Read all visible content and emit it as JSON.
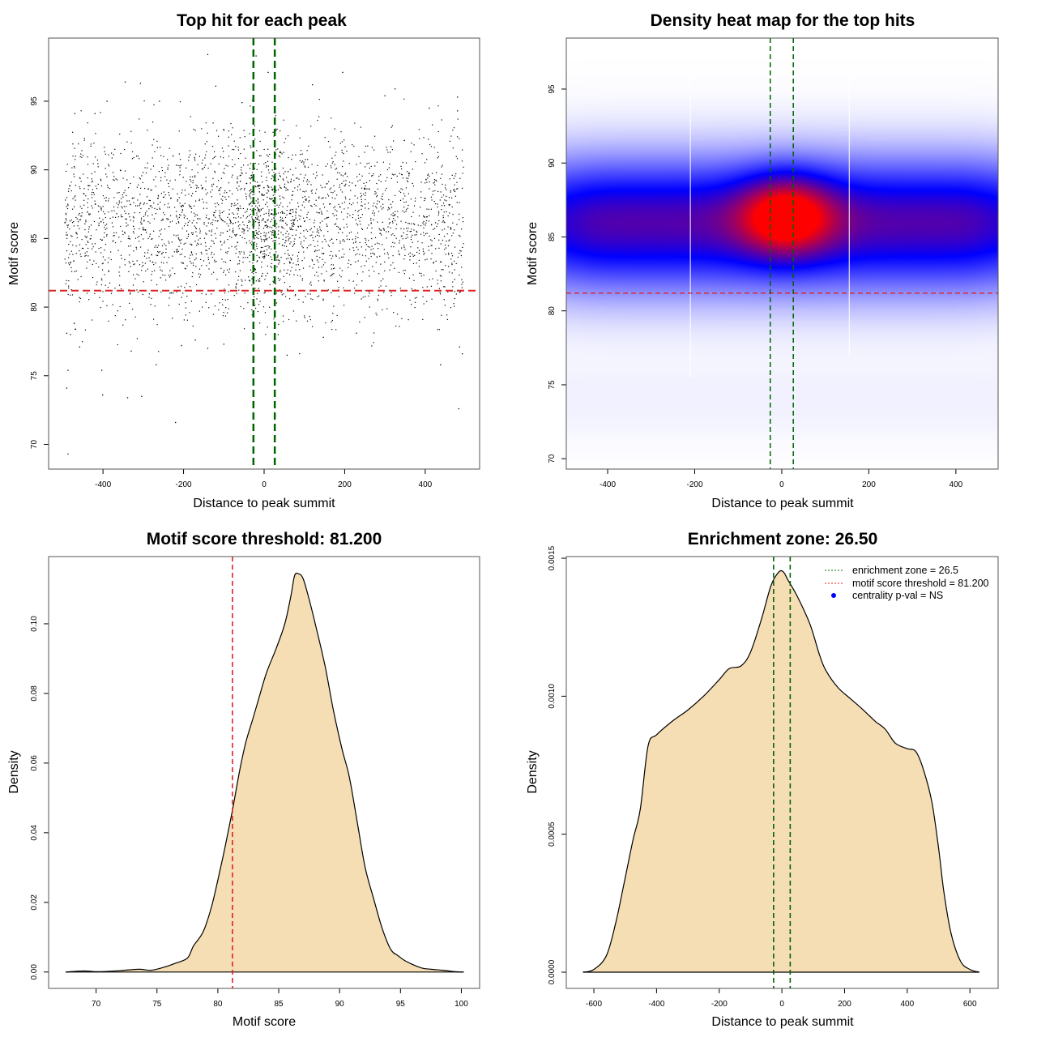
{
  "colors": {
    "points": "#000000",
    "enrichment_line": "#006400",
    "threshold_line": "#dd2222",
    "density_fill": "#f5deb3",
    "heat_low": "#ffffff",
    "heat_mid": "#0000ff",
    "heat_high": "#ff0000",
    "pval_point": "#0000ff"
  },
  "chart_data": [
    {
      "type": "scatter",
      "title": "Top hit for each peak",
      "xlabel": "Distance to peak summit",
      "ylabel": "Motif score",
      "xlim": [
        -535,
        535
      ],
      "ylim": [
        68.2,
        99.6
      ],
      "xticks": [
        "-400",
        "-200",
        "0",
        "200",
        "400"
      ],
      "xtick_values": [
        -400,
        -200,
        0,
        200,
        400
      ],
      "yticks": [
        "70",
        "75",
        "80",
        "85",
        "90",
        "95"
      ],
      "ytick_values": [
        70,
        75,
        80,
        85,
        90,
        95
      ],
      "grid": false,
      "x_data_range": [
        -495,
        495
      ],
      "y_center": 86,
      "outlier_points": [
        [
          -487,
          69.3
        ],
        [
          -220,
          71.6
        ],
        [
          483,
          72.6
        ],
        [
          -490,
          74.1
        ],
        [
          -401,
          73.6
        ],
        [
          -339,
          73.4
        ],
        [
          -304,
          73.5
        ],
        [
          -487,
          75.4
        ],
        [
          -403,
          75.4
        ],
        [
          438,
          75.8
        ],
        [
          -268,
          75.8
        ],
        [
          57,
          76.5
        ],
        [
          492,
          76.6
        ],
        [
          -330,
          76.8
        ],
        [
          485,
          77.1
        ],
        [
          -140,
          77.0
        ],
        [
          -100,
          77.3
        ],
        [
          -205,
          77.2
        ],
        [
          -458,
          77.1
        ],
        [
          -490,
          78.1
        ],
        [
          147,
          77.8
        ],
        [
          229,
          78.1
        ],
        [
          -171,
          77.6
        ],
        [
          -481,
          78.0
        ],
        [
          -140,
          98.4
        ],
        [
          -20,
          98.3
        ],
        [
          195,
          97.1
        ],
        [
          10,
          97.1
        ],
        [
          -345,
          96.4
        ],
        [
          -307,
          96.3
        ],
        [
          -120,
          96.1
        ],
        [
          120,
          96.2
        ],
        [
          480,
          95.3
        ],
        [
          300,
          95.4
        ],
        [
          325,
          95.9
        ],
        [
          -390,
          95.0
        ],
        [
          -260,
          95.0
        ],
        [
          410,
          94.5
        ],
        [
          -470,
          94.1
        ],
        [
          -420,
          94.1
        ],
        [
          -55,
          94.9
        ],
        [
          480,
          94.3
        ]
      ],
      "lines": {
        "vertical": [
          -26.5,
          26.5
        ],
        "horizontal": 81.2
      }
    },
    {
      "type": "heatmap",
      "title": "Density heat map for the top hits",
      "xlabel": "Distance to peak summit",
      "ylabel": "Motif score",
      "xlim": [
        -495,
        497
      ],
      "ylim": [
        69.3,
        98.45
      ],
      "xticks": [
        "-400",
        "-200",
        "0",
        "200",
        "400"
      ],
      "xtick_values": [
        -400,
        -200,
        0,
        200,
        400
      ],
      "yticks": [
        "70",
        "75",
        "80",
        "85",
        "90",
        "95"
      ],
      "ytick_values": [
        70,
        75,
        80,
        85,
        90,
        95
      ],
      "density_peak": [
        10,
        86.5
      ],
      "band_center_y": 86,
      "colorscale": [
        "white",
        "blue",
        "red"
      ],
      "lines": {
        "vertical": [
          -26.5,
          26.5
        ],
        "horizontal": 81.2
      }
    },
    {
      "type": "area",
      "title": "Motif score threshold: 81.200",
      "xlabel": "Motif score",
      "ylabel": "Density",
      "xlim": [
        66.1,
        101.5
      ],
      "ylim": [
        -0.0047,
        0.1193
      ],
      "xticks": [
        "70",
        "75",
        "80",
        "85",
        "90",
        "95",
        "100"
      ],
      "xtick_values": [
        70,
        75,
        80,
        85,
        90,
        95,
        100
      ],
      "yticks": [
        "0.00",
        "0.02",
        "0.04",
        "0.06",
        "0.08",
        "0.10"
      ],
      "ytick_values": [
        0,
        0.02,
        0.04,
        0.06,
        0.08,
        0.1
      ],
      "x": [
        67.5,
        69,
        70,
        71,
        72,
        73.5,
        74.5,
        75.5,
        76.5,
        77.5,
        78,
        78.8,
        79.5,
        80.1,
        80.6,
        81.2,
        81.8,
        82.3,
        82.9,
        83.4,
        84,
        84.8,
        85.5,
        86,
        86.3,
        86.6,
        87,
        87.5,
        88,
        88.8,
        89.5,
        90.2,
        90.8,
        91.5,
        92.1,
        92.8,
        93.5,
        94.2,
        94.8,
        95.5,
        96.7,
        97.5,
        98.5,
        99.5,
        100.2
      ],
      "y": [
        0,
        0.0003,
        0.0001,
        0.0002,
        0.0004,
        0.0008,
        0.0005,
        0.0013,
        0.0025,
        0.004,
        0.0075,
        0.0116,
        0.019,
        0.028,
        0.036,
        0.0465,
        0.058,
        0.066,
        0.073,
        0.079,
        0.086,
        0.093,
        0.1,
        0.108,
        0.1138,
        0.1144,
        0.113,
        0.107,
        0.1,
        0.088,
        0.075,
        0.064,
        0.056,
        0.042,
        0.03,
        0.021,
        0.0125,
        0.0065,
        0.0047,
        0.003,
        0.0012,
        0.0008,
        0.0005,
        0.0001,
        0
      ],
      "lines": {
        "vertical": 81.2
      }
    },
    {
      "type": "area",
      "title": "Enrichment zone: 26.50",
      "xlabel": "Distance to peak summit",
      "ylabel": "Density",
      "xlim": [
        -688,
        690
      ],
      "ylim": [
        -5.87e-05,
        0.001506
      ],
      "xticks": [
        "-600",
        "-400",
        "-200",
        "0",
        "200",
        "400",
        "600"
      ],
      "xtick_values": [
        -600,
        -400,
        -200,
        0,
        200,
        400,
        600
      ],
      "yticks": [
        "0.0000",
        "0.0005",
        "0.0010",
        "0.0015"
      ],
      "ytick_values": [
        0,
        0.0005,
        0.001,
        0.0015
      ],
      "x": [
        -635,
        -600,
        -560,
        -530,
        -504,
        -475,
        -452,
        -427,
        -400,
        -349,
        -300,
        -250,
        -200,
        -168,
        -130,
        -100,
        -65,
        -35,
        -10,
        5,
        20,
        50,
        90,
        120,
        142,
        180,
        220,
        260,
        297,
        330,
        362,
        400,
        427,
        450,
        478,
        500,
        517,
        540,
        570,
        600,
        630
      ],
      "y": [
        0,
        1e-05,
        6e-05,
        0.00018,
        0.00032,
        0.00048,
        0.00059,
        0.00082,
        0.00086,
        0.00091,
        0.00095,
        0.001,
        0.00106,
        0.0011,
        0.00111,
        0.00116,
        0.00128,
        0.0014,
        0.00145,
        0.00145,
        0.00142,
        0.00136,
        0.00126,
        0.00115,
        0.00109,
        0.00103,
        0.00099,
        0.00095,
        0.00091,
        0.00088,
        0.00083,
        0.00081,
        0.0008,
        0.00074,
        0.00062,
        0.00045,
        0.00029,
        0.00014,
        4e-05,
        1e-05,
        0
      ],
      "lines": {
        "vertical": [
          -26.5,
          26.5
        ]
      },
      "legend": {
        "placement": "top-right",
        "entries": [
          {
            "label": "enrichment zone = 26.5",
            "style": "dotted-line",
            "color": "#006400"
          },
          {
            "label": "motif score threshold = 81.200",
            "style": "dotted-line",
            "color": "#dd2222"
          },
          {
            "label": "centrality p-val = NS",
            "style": "point",
            "color": "#0000ff"
          }
        ]
      }
    }
  ]
}
